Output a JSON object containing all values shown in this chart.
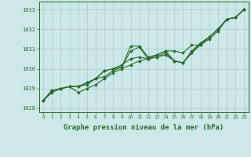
{
  "background_color": "#cce8e8",
  "grid_color": "#aacccc",
  "line_color": "#2d6a2d",
  "marker": "D",
  "marker_size": 1.8,
  "linewidth": 0.8,
  "title": "Graphe pression niveau de la mer (hPa)",
  "title_fontsize": 6.5,
  "xlim": [
    -0.5,
    23.5
  ],
  "ylim": [
    1027.8,
    1033.4
  ],
  "yticks": [
    1028,
    1029,
    1030,
    1031,
    1032,
    1033
  ],
  "xticks": [
    0,
    1,
    2,
    3,
    4,
    5,
    6,
    7,
    8,
    9,
    10,
    11,
    12,
    13,
    14,
    15,
    16,
    17,
    18,
    19,
    20,
    21,
    22,
    23
  ],
  "series": [
    [
      1028.4,
      1028.8,
      1029.0,
      1029.1,
      1028.8,
      1029.0,
      1029.2,
      1029.5,
      1029.8,
      1030.0,
      1030.2,
      1030.4,
      1030.5,
      1030.6,
      1030.7,
      1030.4,
      1030.3,
      1030.8,
      1031.2,
      1031.5,
      1031.9,
      1032.5,
      1032.6,
      1033.0
    ],
    [
      1028.4,
      1028.9,
      1029.0,
      1029.1,
      1029.1,
      1029.2,
      1029.5,
      1029.6,
      1029.9,
      1030.1,
      1031.15,
      1031.15,
      1030.6,
      1030.7,
      1030.9,
      1030.9,
      1030.8,
      1031.2,
      1031.2,
      1031.6,
      1032.0,
      1032.5,
      1032.6,
      1033.0
    ],
    [
      1028.4,
      1028.9,
      1029.0,
      1029.1,
      1029.1,
      1029.3,
      1029.5,
      1029.9,
      1030.0,
      1030.1,
      1030.9,
      1031.1,
      1030.5,
      1030.6,
      1030.8,
      1030.4,
      1030.3,
      1030.9,
      1031.3,
      1031.6,
      1032.0,
      1032.5,
      1032.6,
      1033.0
    ],
    [
      1028.4,
      1028.9,
      1029.0,
      1029.1,
      1029.1,
      1029.3,
      1029.5,
      1029.9,
      1030.0,
      1030.2,
      1030.5,
      1030.6,
      1030.5,
      1030.7,
      1030.9,
      1030.4,
      1030.3,
      1030.8,
      1031.3,
      1031.6,
      1032.0,
      1032.5,
      1032.6,
      1033.0
    ]
  ]
}
